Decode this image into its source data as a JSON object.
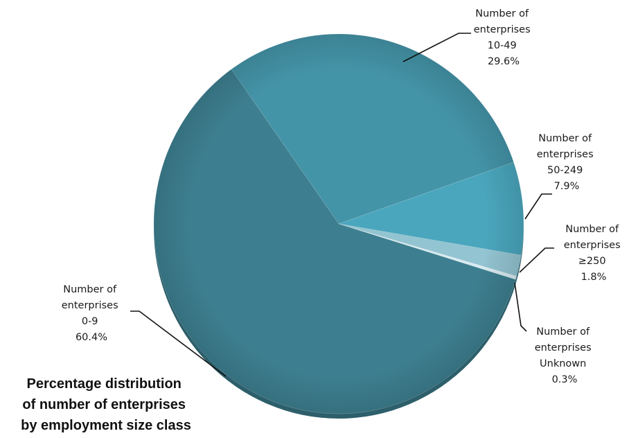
{
  "chart_data": {
    "type": "pie",
    "title": "Percentage distribution of number of enterprises by employment size class",
    "title_lines": [
      "Percentage distribution",
      "of number of enterprises",
      "by employment size class"
    ],
    "unit": "%",
    "slices": [
      {
        "label_lines": [
          "Number of",
          "enterprises",
          "0-9"
        ],
        "label": "Number of enterprises 0-9",
        "value": 60.4,
        "value_text": "60.4%",
        "color": "#3d7f90"
      },
      {
        "label_lines": [
          "Number of",
          "enterprises",
          "10-49"
        ],
        "label": "Number of enterprises 10-49",
        "value": 29.6,
        "value_text": "29.6%",
        "color": "#4494a8"
      },
      {
        "label_lines": [
          "Number of",
          "enterprises",
          "50-249"
        ],
        "label": "Number of enterprises 50-249",
        "value": 7.9,
        "value_text": "7.9%",
        "color": "#4aa6bd"
      },
      {
        "label_lines": [
          "Number of",
          "enterprises",
          "≥250"
        ],
        "label": "Number of enterprises ≥250",
        "value": 1.8,
        "value_text": "1.8%",
        "color": "#93c4d1"
      },
      {
        "label_lines": [
          "Number of",
          "enterprises",
          "Unknown"
        ],
        "label": "Number of enterprises Unknown",
        "value": 0.3,
        "value_text": "0.3%",
        "color": "#d9ecf1"
      }
    ],
    "legend": "none",
    "grid": false
  }
}
